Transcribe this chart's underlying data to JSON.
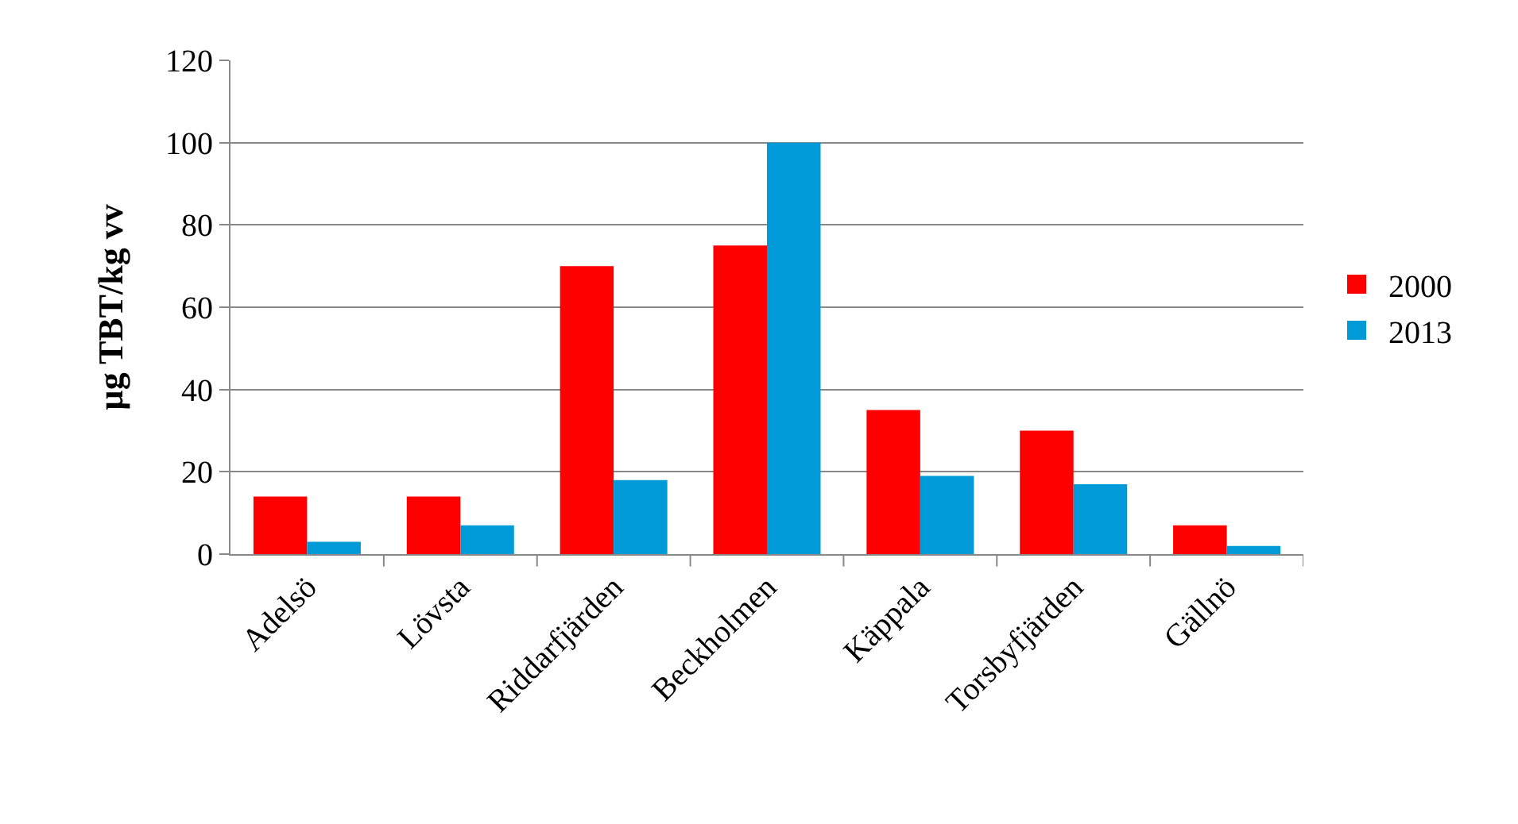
{
  "chart_data": {
    "type": "bar",
    "ylabel": "µg TBT/kg vv",
    "categories": [
      "Adelsö",
      "Lövsta",
      "Riddarfjärden",
      "Beckholmen",
      "Käppala",
      "Torsbyfjärden",
      "Gällnö"
    ],
    "series": [
      {
        "name": "2000",
        "color": "#ff0000",
        "values": [
          14,
          14,
          70,
          75,
          35,
          30,
          7
        ]
      },
      {
        "name": "2013",
        "color": "#009ad9",
        "values": [
          3,
          7,
          18,
          100,
          19,
          17,
          2
        ]
      }
    ],
    "ylim": [
      0,
      120
    ],
    "yticks": [
      0,
      20,
      40,
      60,
      80,
      100,
      120
    ],
    "grid": "y",
    "legend": "right"
  }
}
